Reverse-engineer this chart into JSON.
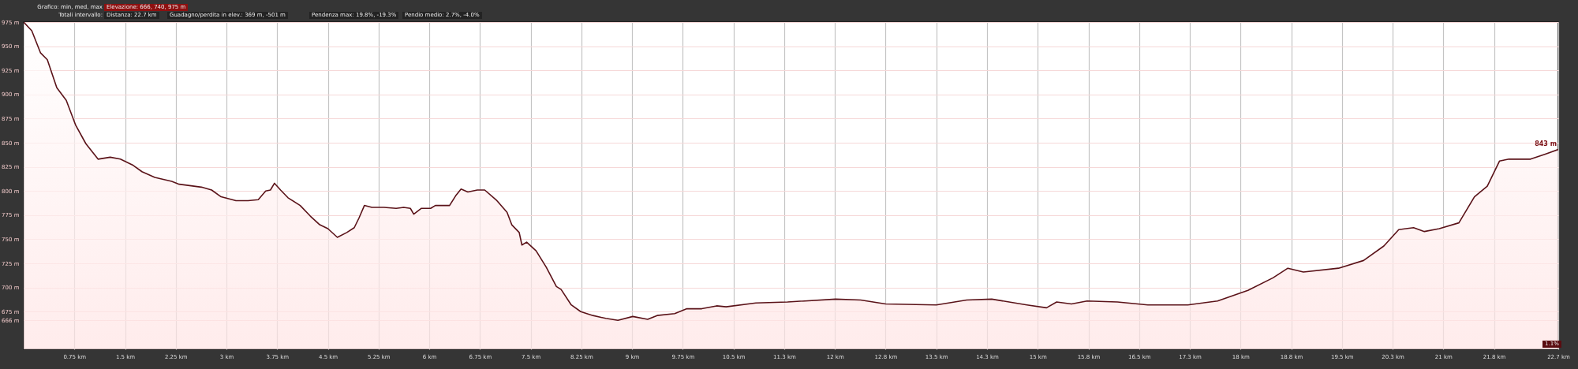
{
  "chart_data": {
    "type": "area",
    "annotations": [
      "Grafico: min, med, max",
      "Elevazione: 666, 740, 975 m",
      "Totali intervallo:",
      "Distanza: 22.7 km",
      "Guadagno/perdita in elev.: 369 m, -501 m",
      "Pendenza max: 19.8%, -19.3%",
      "Pendio medio: 2.7%, -4.0%",
      {
        "text": "843 m",
        "x": 22.7,
        "y": 843
      },
      "1.1%"
    ],
    "series": [
      {
        "color": "#ffb0b0",
        "x": [
          0,
          0.12,
          0.25,
          0.35,
          0.49,
          0.63,
          0.77,
          0.92,
          1.1,
          1.28,
          1.43,
          1.61,
          1.75,
          1.94,
          2.19,
          2.3,
          2.63,
          2.78,
          2.92,
          3.14,
          3.32,
          3.47,
          3.58,
          3.65,
          3.71,
          3.8,
          3.91,
          4.09,
          4.24,
          4.38,
          4.5,
          4.64,
          4.78,
          4.89,
          4.96,
          5.04,
          5.15,
          5.33,
          5.51,
          5.62,
          5.72,
          5.77,
          5.88,
          6.02,
          6.09,
          6.3,
          6.39,
          6.47,
          6.57,
          6.71,
          6.82,
          7,
          7.15,
          7.22,
          7.33,
          7.37,
          7.44,
          7.58,
          7.73,
          7.88,
          7.95,
          8.1,
          8.24,
          8.42,
          8.61,
          8.79,
          9.01,
          9.23,
          9.37,
          9.63,
          9.81,
          10.03,
          10.25,
          10.39,
          10.83,
          11.3,
          12.01,
          12.38,
          12.75,
          13.5,
          13.95,
          14.32,
          14.84,
          15.13,
          15.28,
          15.5,
          15.73,
          16.18,
          16.63,
          17.22,
          17.66,
          18.11,
          18.48,
          18.7,
          18.93,
          19.45,
          19.82,
          20.12,
          20.34,
          20.56,
          20.72,
          20.94,
          21.23,
          21.46,
          21.65,
          21.83,
          21.97,
          22.29,
          22.5,
          22.7
        ],
        "values": [
          975,
          966,
          943,
          936,
          907,
          894,
          868,
          849,
          833,
          835,
          833,
          827,
          820,
          814,
          810,
          807,
          804,
          801,
          794,
          790,
          790,
          791,
          800,
          801,
          808,
          801,
          793,
          785,
          774,
          765,
          761,
          752,
          757,
          762,
          772,
          785,
          783,
          783,
          782,
          783,
          782,
          776,
          782,
          782,
          785,
          785,
          795,
          802,
          799,
          801,
          801,
          790,
          778,
          765,
          757,
          744,
          747,
          738,
          721,
          701,
          698,
          682,
          675,
          671,
          668,
          666,
          670,
          667,
          671,
          673,
          678,
          678,
          681,
          680,
          684,
          685,
          688,
          687,
          683,
          682,
          687,
          688,
          682,
          679,
          685,
          683,
          686,
          685,
          682,
          682,
          686,
          697,
          710,
          720,
          716,
          720,
          728,
          743,
          760,
          762,
          758,
          761,
          767,
          794,
          805,
          831,
          833,
          833,
          838,
          843
        ]
      }
    ],
    "xlim": [
      0,
      22.7
    ],
    "xticks": [
      {
        "value": 0.75,
        "label": "0.75 km"
      },
      {
        "value": 1.5,
        "label": "1.5 km"
      },
      {
        "value": 2.25,
        "label": "2.25 km"
      },
      {
        "value": 3,
        "label": "3 km"
      },
      {
        "value": 3.75,
        "label": "3.75 km"
      },
      {
        "value": 4.5,
        "label": "4.5 km"
      },
      {
        "value": 5.25,
        "label": "5.25 km"
      },
      {
        "value": 6,
        "label": "6 km"
      },
      {
        "value": 6.75,
        "label": "6.75 km"
      },
      {
        "value": 7.5,
        "label": "7.5 km"
      },
      {
        "value": 8.25,
        "label": "8.25 km"
      },
      {
        "value": 9,
        "label": "9 km"
      },
      {
        "value": 9.75,
        "label": "9.75 km"
      },
      {
        "value": 10.5,
        "label": "10.5 km"
      },
      {
        "value": 11.25,
        "label": "11.3 km"
      },
      {
        "value": 12,
        "label": "12 km"
      },
      {
        "value": 12.75,
        "label": "12.8 km"
      },
      {
        "value": 13.5,
        "label": "13.5 km"
      },
      {
        "value": 14.25,
        "label": "14.3 km"
      },
      {
        "value": 15,
        "label": "15 km"
      },
      {
        "value": 15.75,
        "label": "15.8 km"
      },
      {
        "value": 16.5,
        "label": "16.5 km"
      },
      {
        "value": 17.25,
        "label": "17.3 km"
      },
      {
        "value": 18,
        "label": "18 km"
      },
      {
        "value": 18.75,
        "label": "18.8 km"
      },
      {
        "value": 19.5,
        "label": "19.5 km"
      },
      {
        "value": 20.25,
        "label": "20.3 km"
      },
      {
        "value": 21,
        "label": "21 km"
      },
      {
        "value": 21.75,
        "label": "21.8 km"
      },
      {
        "value": 22.7,
        "label": "22.7 km"
      }
    ],
    "ylim": [
      636,
      975
    ],
    "yticks": [
      {
        "value": 666,
        "label": "666 m"
      },
      {
        "value": 675,
        "label": "675 m"
      },
      {
        "value": 700,
        "label": "700 m"
      },
      {
        "value": 725,
        "label": "725 m"
      },
      {
        "value": 750,
        "label": "750 m"
      },
      {
        "value": 775,
        "label": "775 m"
      },
      {
        "value": 800,
        "label": "800 m"
      },
      {
        "value": 825,
        "label": "825 m"
      },
      {
        "value": 850,
        "label": "850 m"
      },
      {
        "value": 875,
        "label": "875 m"
      },
      {
        "value": 900,
        "label": "900 m"
      },
      {
        "value": 925,
        "label": "925 m"
      },
      {
        "value": 950,
        "label": "950 m"
      },
      {
        "value": 975,
        "label": "975 m"
      }
    ],
    "grid": true
  }
}
